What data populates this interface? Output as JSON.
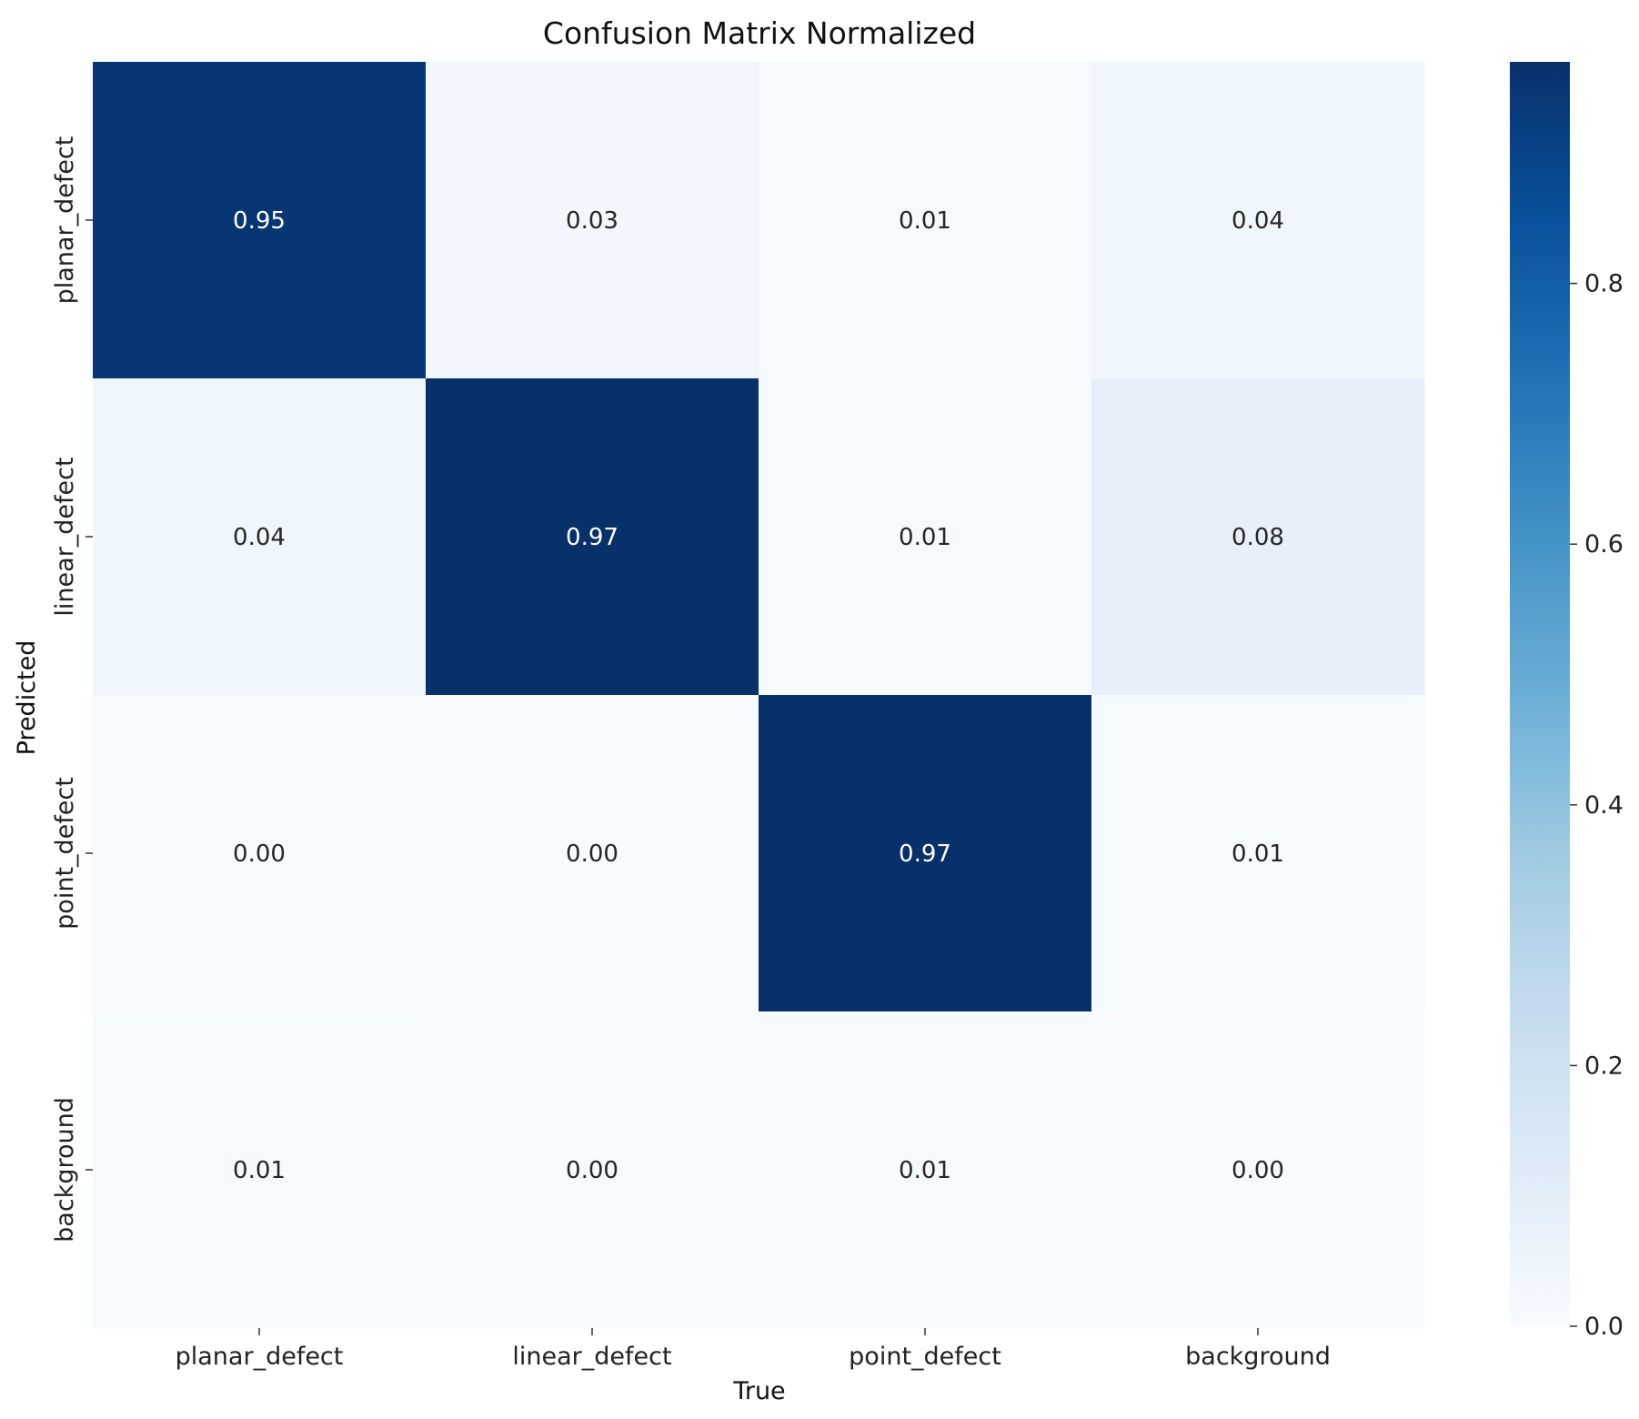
{
  "chart_data": {
    "type": "heatmap",
    "title": "Confusion Matrix Normalized",
    "xlabel": "True",
    "ylabel": "Predicted",
    "x_categories": [
      "planar_defect",
      "linear_defect",
      "point_defect",
      "background"
    ],
    "y_categories": [
      "planar_defect",
      "linear_defect",
      "point_defect",
      "background"
    ],
    "values": [
      [
        0.95,
        0.03,
        0.01,
        0.04
      ],
      [
        0.04,
        0.97,
        0.01,
        0.08
      ],
      [
        0.0,
        0.0,
        0.97,
        0.01
      ],
      [
        0.01,
        0.0,
        0.01,
        0.0
      ]
    ],
    "cell_labels": [
      [
        "0.95",
        "0.03",
        "0.01",
        "0.04"
      ],
      [
        "0.04",
        "0.97",
        "0.01",
        "0.08"
      ],
      [
        "0.00",
        "0.00",
        "0.97",
        "0.01"
      ],
      [
        "0.01",
        "0.00",
        "0.01",
        "0.00"
      ]
    ],
    "colormap": "Blues",
    "colorbar": {
      "range": [
        0,
        0.97
      ],
      "ticks": [
        0.0,
        0.2,
        0.4,
        0.6,
        0.8
      ],
      "tick_labels": [
        "0.0",
        "0.2",
        "0.4",
        "0.6",
        "0.8"
      ]
    },
    "colors": {
      "low": "#f7fbff",
      "high": "#08306b"
    }
  }
}
